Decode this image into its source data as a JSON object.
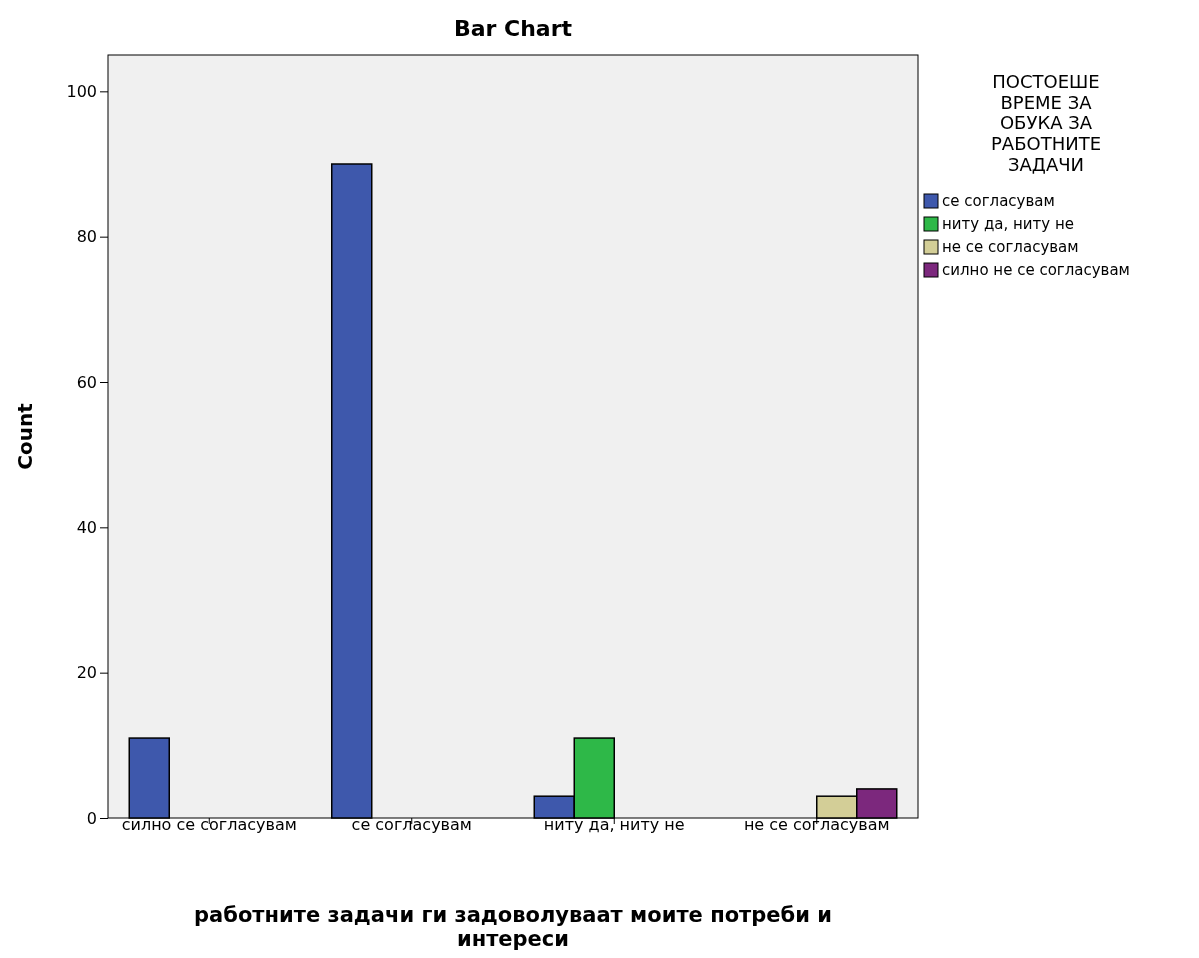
{
  "chart_data": {
    "type": "bar",
    "title": "Bar Chart",
    "xlabel": "работните задачи ги задоволуваат моите потреби и интереси",
    "ylabel": "Count",
    "legend_title": "ПОСТОЕШЕ ВРЕМЕ ЗА ОБУКА ЗА РАБОТНИТЕ ЗАДАЧИ",
    "categories": [
      "силно се согласувам",
      "се согласувам",
      "ниту да, ниту не",
      "не се согласувам"
    ],
    "series": [
      {
        "name": "се согласувам",
        "color": "#3e58ac",
        "values": [
          11,
          90,
          3,
          null
        ]
      },
      {
        "name": "ниту да, ниту не",
        "color": "#2eb848",
        "values": [
          null,
          null,
          11,
          null
        ]
      },
      {
        "name": "не се согласувам",
        "color": "#d3ce97",
        "values": [
          null,
          null,
          null,
          3
        ]
      },
      {
        "name": "силно не се согласувам",
        "color": "#7c287d",
        "values": [
          null,
          null,
          null,
          4
        ]
      }
    ],
    "ylim": [
      0,
      105
    ],
    "yticks": [
      0,
      20,
      40,
      60,
      80,
      100
    ],
    "grid": false,
    "legend": "right"
  }
}
